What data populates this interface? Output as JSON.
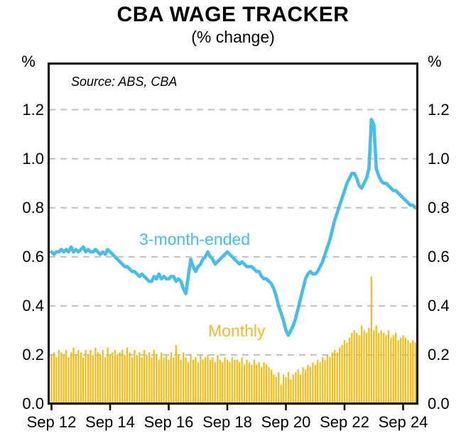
{
  "header": {
    "title": "CBA WAGE TRACKER",
    "subtitle": "(% change)"
  },
  "source_note": "Source: ABS, CBA",
  "axis": {
    "left_unit": "%",
    "right_unit": "%",
    "y_ticks": [
      "1.2",
      "1.0",
      "0.8",
      "0.6",
      "0.4",
      "0.2",
      "0.0"
    ],
    "x_ticks": [
      "Sep 12",
      "Sep 14",
      "Sep 16",
      "Sep 18",
      "Sep 20",
      "Sep 22",
      "Sep 24"
    ]
  },
  "series_labels": {
    "line": "3-month-ended",
    "bars": "Monthly"
  },
  "colors": {
    "line": "#45BEE8",
    "bars": "#F5BE18",
    "bars_label": "#FBB62A",
    "grid": "#BFBFBF",
    "frame": "#111111",
    "text": "#000000"
  },
  "chart_data": {
    "type": "bar",
    "subtype": "combo bar+line",
    "title": "CBA WAGE TRACKER",
    "subtitle": "(% change)",
    "xlabel": "",
    "ylabel": "%",
    "ylim": [
      0,
      1.4
    ],
    "gridlines": [
      0.2,
      0.4,
      0.6,
      0.8,
      1.0,
      1.2
    ],
    "grid": "dashed horizontal",
    "legend_position": "inline text labels",
    "x_start": "Sep 2012",
    "x_end": "Feb 2025",
    "frequency": "monthly",
    "x_tick_labels": [
      "Sep 12",
      "Sep 14",
      "Sep 16",
      "Sep 18",
      "Sep 20",
      "Sep 22",
      "Sep 24"
    ],
    "series": [
      {
        "name": "Monthly",
        "type": "bar",
        "color": "#F5BE18",
        "values": [
          0.2,
          0.21,
          0.19,
          0.22,
          0.21,
          0.2,
          0.22,
          0.19,
          0.21,
          0.23,
          0.2,
          0.22,
          0.21,
          0.19,
          0.22,
          0.2,
          0.22,
          0.2,
          0.23,
          0.21,
          0.2,
          0.22,
          0.19,
          0.23,
          0.2,
          0.21,
          0.22,
          0.2,
          0.21,
          0.22,
          0.2,
          0.23,
          0.21,
          0.19,
          0.22,
          0.2,
          0.21,
          0.19,
          0.22,
          0.2,
          0.21,
          0.19,
          0.22,
          0.2,
          0.18,
          0.21,
          0.19,
          0.2,
          0.18,
          0.21,
          0.19,
          0.24,
          0.2,
          0.18,
          0.21,
          0.19,
          0.17,
          0.2,
          0.18,
          0.19,
          0.17,
          0.2,
          0.18,
          0.19,
          0.2,
          0.18,
          0.19,
          0.17,
          0.2,
          0.18,
          0.17,
          0.19,
          0.18,
          0.17,
          0.19,
          0.18,
          0.18,
          0.17,
          0.19,
          0.16,
          0.18,
          0.17,
          0.16,
          0.18,
          0.16,
          0.17,
          0.15,
          0.17,
          0.16,
          0.15,
          0.14,
          0.12,
          0.11,
          0.13,
          0.08,
          0.12,
          0.11,
          0.13,
          0.1,
          0.12,
          0.13,
          0.14,
          0.12,
          0.15,
          0.14,
          0.16,
          0.15,
          0.17,
          0.16,
          0.18,
          0.17,
          0.19,
          0.18,
          0.2,
          0.19,
          0.21,
          0.22,
          0.21,
          0.23,
          0.24,
          0.26,
          0.25,
          0.27,
          0.29,
          0.3,
          0.29,
          0.28,
          0.32,
          0.3,
          0.29,
          0.31,
          0.52,
          0.3,
          0.32,
          0.29,
          0.3,
          0.29,
          0.28,
          0.3,
          0.27,
          0.28,
          0.29,
          0.26,
          0.27,
          0.28,
          0.27,
          0.26,
          0.25,
          0.26,
          0.25
        ]
      },
      {
        "name": "3-month-ended",
        "type": "line",
        "color": "#45BEE8",
        "values": [
          0.62,
          0.61,
          0.62,
          0.62,
          0.63,
          0.62,
          0.63,
          0.62,
          0.64,
          0.62,
          0.63,
          0.62,
          0.63,
          0.64,
          0.62,
          0.63,
          0.62,
          0.62,
          0.63,
          0.62,
          0.61,
          0.62,
          0.61,
          0.63,
          0.62,
          0.61,
          0.6,
          0.59,
          0.58,
          0.57,
          0.56,
          0.56,
          0.55,
          0.54,
          0.54,
          0.53,
          0.52,
          0.53,
          0.52,
          0.51,
          0.5,
          0.5,
          0.52,
          0.51,
          0.53,
          0.51,
          0.52,
          0.51,
          0.51,
          0.52,
          0.52,
          0.5,
          0.51,
          0.5,
          0.47,
          0.45,
          0.52,
          0.59,
          0.56,
          0.54,
          0.56,
          0.57,
          0.59,
          0.6,
          0.62,
          0.6,
          0.59,
          0.57,
          0.58,
          0.59,
          0.6,
          0.61,
          0.62,
          0.61,
          0.6,
          0.59,
          0.58,
          0.57,
          0.58,
          0.57,
          0.56,
          0.56,
          0.56,
          0.55,
          0.54,
          0.54,
          0.52,
          0.51,
          0.51,
          0.5,
          0.49,
          0.47,
          0.44,
          0.4,
          0.37,
          0.34,
          0.3,
          0.28,
          0.3,
          0.32,
          0.35,
          0.39,
          0.43,
          0.47,
          0.51,
          0.53,
          0.54,
          0.53,
          0.53,
          0.54,
          0.56,
          0.58,
          0.61,
          0.64,
          0.67,
          0.71,
          0.75,
          0.78,
          0.81,
          0.84,
          0.87,
          0.9,
          0.92,
          0.94,
          0.94,
          0.92,
          0.89,
          0.88,
          0.9,
          0.92,
          0.96,
          1.16,
          1.14,
          0.96,
          0.93,
          0.91,
          0.9,
          0.9,
          0.89,
          0.88,
          0.87,
          0.87,
          0.86,
          0.85,
          0.84,
          0.83,
          0.82,
          0.81,
          0.81,
          0.8
        ]
      }
    ]
  }
}
